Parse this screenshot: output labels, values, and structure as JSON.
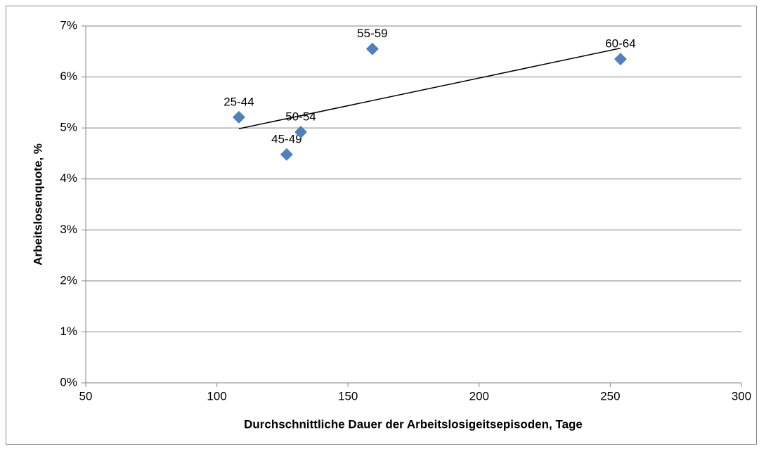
{
  "chart_data": {
    "type": "scatter",
    "x_label": "Durchschnittliche Dauer der Arbeitslosigeitsepisoden, Tage",
    "y_label": "Arbeitslosenquote, %",
    "labels": [
      "25-44",
      "45-49",
      "50-54",
      "55-59",
      "60-64"
    ],
    "series": [
      {
        "color": "#4f81bd",
        "x": [
          108.4,
          126.6,
          132,
          159.3,
          253.9
        ],
        "values": [
          5.21,
          4.48,
          4.92,
          6.55,
          6.35
        ]
      }
    ],
    "trendline": true,
    "trendline_color": "#000000",
    "xlim": [
      50,
      300
    ],
    "xticks": [
      50,
      100,
      150,
      200,
      250,
      300
    ],
    "ylim": [
      0,
      7
    ],
    "yticks": [
      {
        "value": 0,
        "label": "0%"
      },
      {
        "value": 1,
        "label": "1%"
      },
      {
        "value": 2,
        "label": "2%"
      },
      {
        "value": 3,
        "label": "3%"
      },
      {
        "value": 4,
        "label": "4%"
      },
      {
        "value": 5,
        "label": "5%"
      },
      {
        "value": 6,
        "label": "6%"
      },
      {
        "value": 7,
        "label": "7%"
      }
    ],
    "grid": true
  }
}
